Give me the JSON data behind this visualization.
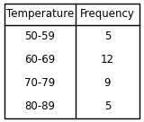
{
  "col1_header": "Temperature",
  "col2_header": "Frequency",
  "rows": [
    [
      "50-59",
      "5"
    ],
    [
      "60-69",
      "12"
    ],
    [
      "70-79",
      "9"
    ],
    [
      "80-89",
      "5"
    ]
  ],
  "bg_color": "#ffffff",
  "border_color": "#000000",
  "header_fontsize": 8.5,
  "cell_fontsize": 8.5,
  "fig_width": 1.6,
  "fig_height": 1.36,
  "dpi": 100
}
